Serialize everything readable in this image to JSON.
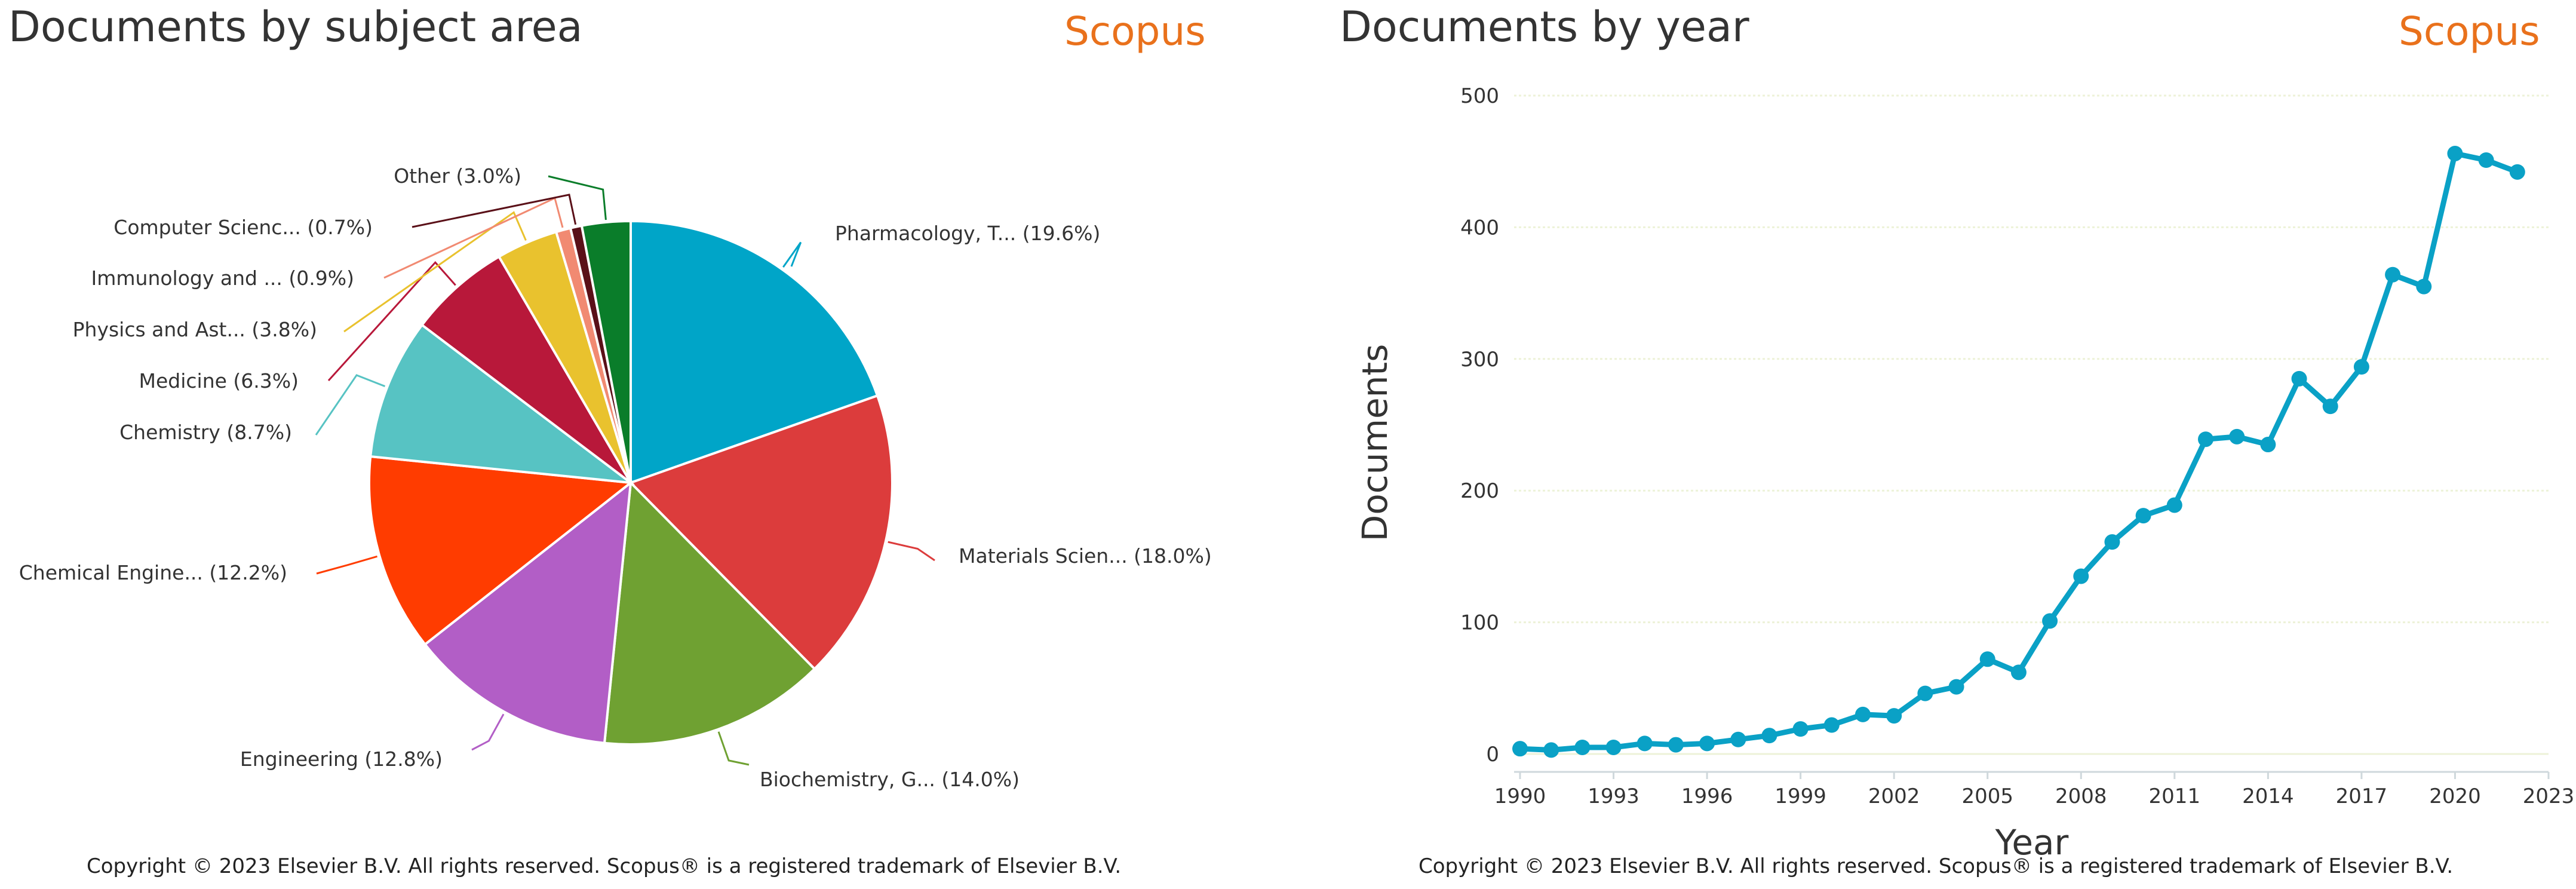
{
  "brand": "Scopus",
  "copyright": "Copyright © 2023 Elsevier B.V. All rights reserved. Scopus® is a registered trademark of Elsevier B.V.",
  "colors": {
    "brand": "#e9711c",
    "line": "#0aa1c6",
    "grid": "#edf2d8"
  },
  "chart_data": [
    {
      "type": "pie",
      "title": "Documents by subject area",
      "slices": [
        {
          "label": "Pharmacology, T... (19.6%)",
          "value": 19.6,
          "color": "#00a5c8"
        },
        {
          "label": "Materials Scien... (18.0%)",
          "value": 18.0,
          "color": "#dc3c3c"
        },
        {
          "label": "Biochemistry, G... (14.0%)",
          "value": 14.0,
          "color": "#6fa132"
        },
        {
          "label": "Engineering (12.8%)",
          "value": 12.8,
          "color": "#b25ec6"
        },
        {
          "label": "Chemical Engine... (12.2%)",
          "value": 12.2,
          "color": "#ff3c00"
        },
        {
          "label": "Chemistry (8.7%)",
          "value": 8.7,
          "color": "#57c3c3"
        },
        {
          "label": "Medicine (6.3%)",
          "value": 6.3,
          "color": "#b8183a"
        },
        {
          "label": "Physics and Ast... (3.8%)",
          "value": 3.8,
          "color": "#e9c22e"
        },
        {
          "label": "Immunology and ... (0.9%)",
          "value": 0.9,
          "color": "#f18a72"
        },
        {
          "label": "Computer Scienc... (0.7%)",
          "value": 0.7,
          "color": "#5a1018"
        },
        {
          "label": "Other (3.0%)",
          "value": 3.0,
          "color": "#0a7d2a"
        }
      ]
    },
    {
      "type": "line",
      "title": "Documents by year",
      "xlabel": "Year",
      "ylabel": "Documents",
      "ylim": [
        0,
        500
      ],
      "yticks": [
        0,
        100,
        200,
        300,
        400,
        500
      ],
      "xticks": [
        1990,
        1993,
        1996,
        1999,
        2002,
        2005,
        2008,
        2011,
        2014,
        2017,
        2020,
        2023
      ],
      "xlim": [
        1990,
        2023
      ],
      "grid": true,
      "x": [
        1990,
        1991,
        1992,
        1993,
        1994,
        1995,
        1996,
        1997,
        1998,
        1999,
        2000,
        2001,
        2002,
        2003,
        2004,
        2005,
        2006,
        2007,
        2008,
        2009,
        2010,
        2011,
        2012,
        2013,
        2014,
        2015,
        2016,
        2017,
        2018,
        2019,
        2020,
        2021,
        2022
      ],
      "series": [
        {
          "values": [
            4,
            3,
            5,
            5,
            8,
            7,
            8,
            11,
            14,
            19,
            22,
            30,
            29,
            46,
            51,
            72,
            62,
            101,
            135,
            161,
            181,
            189,
            239,
            241,
            235,
            285,
            264,
            294,
            364,
            355,
            456,
            451,
            442
          ]
        }
      ]
    }
  ]
}
